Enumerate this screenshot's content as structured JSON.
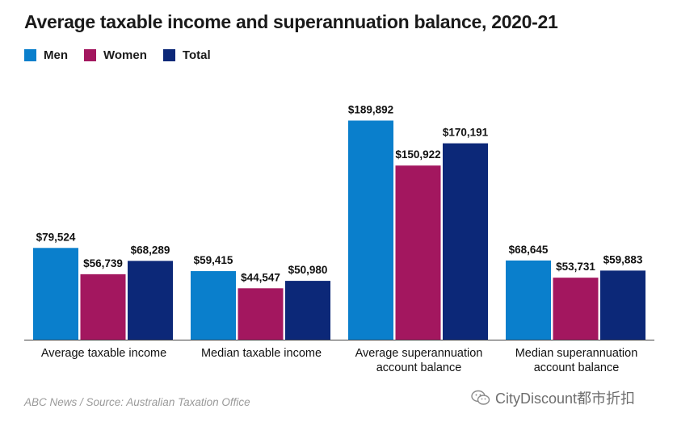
{
  "title": "Average taxable income and superannuation balance, 2020-21",
  "source": "ABC News / Source: Australian Taxation Office",
  "watermark": "CityDiscount都市折扣",
  "colors": {
    "men": "#0a7fcc",
    "women": "#a3175f",
    "total": "#0c2878",
    "axis": "#444444"
  },
  "chart_data": {
    "type": "bar",
    "title": "Average taxable income and superannuation balance, 2020-21",
    "xlabel": "",
    "ylabel": "",
    "ylim": [
      0,
      200000
    ],
    "grid": false,
    "legend_position": "top-left",
    "categories": [
      [
        "Average taxable income"
      ],
      [
        "Median taxable income"
      ],
      [
        "Average superannuation",
        "account balance"
      ],
      [
        "Median superannuation",
        "account balance"
      ]
    ],
    "series": [
      {
        "name": "Men",
        "values": [
          79524,
          59415,
          189892,
          68645
        ],
        "labels": [
          "$79,524",
          "$59,415",
          "$189,892",
          "$68,645"
        ]
      },
      {
        "name": "Women",
        "values": [
          56739,
          44547,
          150922,
          53731
        ],
        "labels": [
          "$56,739",
          "$44,547",
          "$150,922",
          "$53,731"
        ]
      },
      {
        "name": "Total",
        "values": [
          68289,
          50980,
          170191,
          59883
        ],
        "labels": [
          "$68,289",
          "$50,980",
          "$170,191",
          "$59,883"
        ]
      }
    ]
  }
}
